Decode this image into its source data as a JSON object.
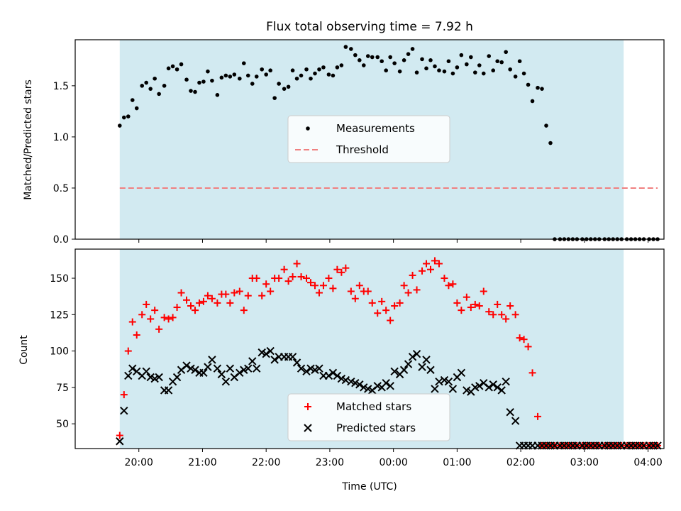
{
  "chart_data": [
    {
      "type": "scatter",
      "title": "Flux total observing time = 7.92 h",
      "ylabel": "Matched/Predicted stars",
      "ylim": [
        0,
        1.95
      ],
      "yticks": [
        0.0,
        0.5,
        1.0,
        1.5
      ],
      "ytick_labels": [
        "0.0",
        "0.5",
        "1.0",
        "1.5"
      ],
      "observing_window": {
        "start": "19:42",
        "end": "03:37",
        "color": "#add8e6"
      },
      "legend": {
        "placement": "center",
        "entries": [
          "Measurements",
          "Threshold"
        ]
      },
      "series": [
        {
          "name": "Measurements",
          "color": "#000000",
          "marker": "dot",
          "x": [
            "19:42",
            "19:46",
            "19:50",
            "19:54",
            "19:58",
            "20:03",
            "20:07",
            "20:11",
            "20:15",
            "20:19",
            "20:24",
            "20:28",
            "20:32",
            "20:36",
            "20:40",
            "20:45",
            "20:49",
            "20:53",
            "20:57",
            "21:01",
            "21:05",
            "21:09",
            "21:14",
            "21:18",
            "21:22",
            "21:26",
            "21:30",
            "21:35",
            "21:39",
            "21:43",
            "21:47",
            "21:51",
            "21:56",
            "22:00",
            "22:04",
            "22:08",
            "22:12",
            "22:17",
            "22:21",
            "22:25",
            "22:29",
            "22:33",
            "22:38",
            "22:42",
            "22:46",
            "22:50",
            "22:54",
            "22:59",
            "23:03",
            "23:07",
            "23:11",
            "23:15",
            "23:20",
            "23:24",
            "23:28",
            "23:32",
            "23:36",
            "23:40",
            "23:45",
            "23:49",
            "23:53",
            "23:57",
            "00:01",
            "00:06",
            "00:10",
            "00:14",
            "00:18",
            "00:22",
            "00:27",
            "00:31",
            "00:35",
            "00:39",
            "00:43",
            "00:48",
            "00:52",
            "00:56",
            "01:00",
            "01:04",
            "01:09",
            "01:13",
            "01:17",
            "01:21",
            "01:25",
            "01:30",
            "01:34",
            "01:38",
            "01:42",
            "01:46",
            "01:50",
            "01:55",
            "01:59",
            "02:03",
            "02:07",
            "02:11",
            "02:16",
            "02:20",
            "02:24",
            "02:28",
            "02:32",
            "02:37",
            "02:41",
            "02:45",
            "02:49",
            "02:53",
            "02:58",
            "03:02",
            "03:06",
            "03:10",
            "03:14",
            "03:19",
            "03:23",
            "03:27",
            "03:31",
            "03:35",
            "03:40",
            "03:44",
            "03:48",
            "03:52",
            "03:56",
            "04:01",
            "04:05",
            "04:09"
          ],
          "y": [
            1.11,
            1.19,
            1.2,
            1.36,
            1.28,
            1.5,
            1.53,
            1.47,
            1.57,
            1.42,
            1.5,
            1.67,
            1.69,
            1.66,
            1.71,
            1.56,
            1.45,
            1.44,
            1.53,
            1.54,
            1.64,
            1.55,
            1.41,
            1.58,
            1.6,
            1.59,
            1.61,
            1.57,
            1.72,
            1.6,
            1.52,
            1.59,
            1.66,
            1.61,
            1.65,
            1.38,
            1.52,
            1.47,
            1.49,
            1.65,
            1.57,
            1.6,
            1.66,
            1.57,
            1.62,
            1.66,
            1.68,
            1.61,
            1.6,
            1.68,
            1.7,
            1.88,
            1.86,
            1.8,
            1.75,
            1.7,
            1.79,
            1.78,
            1.78,
            1.74,
            1.65,
            1.78,
            1.72,
            1.64,
            1.75,
            1.81,
            1.86,
            1.63,
            1.76,
            1.67,
            1.75,
            1.69,
            1.65,
            1.64,
            1.74,
            1.62,
            1.68,
            1.8,
            1.71,
            1.78,
            1.63,
            1.7,
            1.62,
            1.79,
            1.65,
            1.74,
            1.73,
            1.83,
            1.66,
            1.59,
            1.74,
            1.62,
            1.51,
            1.35,
            1.48,
            1.47,
            1.11,
            0.94,
            0.0,
            0.0,
            0.0,
            0.0,
            0.0,
            0.0,
            0.0,
            0.0,
            0.0,
            0.0,
            0.0,
            0.0,
            0.0,
            0.0,
            0.0,
            0.0,
            0.0,
            0.0,
            0.0,
            0.0,
            0.0,
            0.0,
            0.0,
            0.0
          ]
        },
        {
          "name": "Threshold",
          "color": "#f08080",
          "style": "dashed",
          "x": [
            "19:42",
            "04:09"
          ],
          "y": [
            0.5,
            0.5
          ]
        }
      ]
    },
    {
      "type": "scatter",
      "xlabel": "Time (UTC)",
      "ylabel": "Count",
      "ylim": [
        33,
        170
      ],
      "yticks": [
        50,
        75,
        100,
        125,
        150
      ],
      "ytick_labels": [
        "50",
        "75",
        "100",
        "125",
        "150"
      ],
      "x_ticks": [
        "20:00",
        "21:00",
        "22:00",
        "23:00",
        "00:00",
        "01:00",
        "02:00",
        "03:00",
        "04:00"
      ],
      "observing_window": {
        "start": "19:42",
        "end": "03:37",
        "color": "#add8e6"
      },
      "legend": {
        "placement": "bottom-center",
        "entries": [
          "Matched stars",
          "Predicted stars"
        ]
      },
      "series": [
        {
          "name": "Matched stars",
          "color": "#ff0000",
          "marker": "plus",
          "x": [
            "19:42",
            "19:46",
            "19:50",
            "19:54",
            "19:58",
            "20:03",
            "20:07",
            "20:11",
            "20:15",
            "20:19",
            "20:24",
            "20:28",
            "20:32",
            "20:36",
            "20:40",
            "20:45",
            "20:49",
            "20:53",
            "20:57",
            "21:01",
            "21:05",
            "21:09",
            "21:14",
            "21:18",
            "21:22",
            "21:26",
            "21:30",
            "21:35",
            "21:39",
            "21:43",
            "21:47",
            "21:51",
            "21:56",
            "22:00",
            "22:04",
            "22:08",
            "22:12",
            "22:17",
            "22:21",
            "22:25",
            "22:29",
            "22:33",
            "22:38",
            "22:42",
            "22:46",
            "22:50",
            "22:54",
            "22:59",
            "23:03",
            "23:07",
            "23:11",
            "23:15",
            "23:20",
            "23:24",
            "23:28",
            "23:32",
            "23:36",
            "23:40",
            "23:45",
            "23:49",
            "23:53",
            "23:57",
            "00:01",
            "00:06",
            "00:10",
            "00:14",
            "00:18",
            "00:22",
            "00:27",
            "00:31",
            "00:35",
            "00:39",
            "00:43",
            "00:48",
            "00:52",
            "00:56",
            "01:00",
            "01:04",
            "01:09",
            "01:13",
            "01:17",
            "01:21",
            "01:25",
            "01:30",
            "01:34",
            "01:38",
            "01:42",
            "01:46",
            "01:50",
            "01:55",
            "01:59",
            "02:03",
            "02:07",
            "02:11",
            "02:16",
            "02:20",
            "02:24",
            "02:28",
            "02:32",
            "02:37",
            "02:41",
            "02:45",
            "02:49",
            "02:53",
            "02:58",
            "03:02",
            "03:06",
            "03:10",
            "03:14",
            "03:19",
            "03:23",
            "03:27",
            "03:31",
            "03:35",
            "03:40",
            "03:44",
            "03:48",
            "03:52",
            "03:56",
            "04:01",
            "04:05",
            "04:09"
          ],
          "y": [
            42,
            70,
            100,
            120,
            111,
            125,
            132,
            122,
            128,
            115,
            123,
            122,
            123,
            130,
            140,
            135,
            131,
            128,
            133,
            134,
            138,
            136,
            133,
            139,
            139,
            133,
            140,
            141,
            128,
            138,
            150,
            150,
            138,
            146,
            141,
            150,
            150,
            156,
            148,
            151,
            160,
            151,
            150,
            147,
            145,
            140,
            145,
            150,
            143,
            156,
            154,
            157,
            141,
            136,
            145,
            141,
            141,
            133,
            126,
            134,
            128,
            121,
            131,
            133,
            145,
            140,
            152,
            142,
            155,
            160,
            156,
            162,
            160,
            150,
            145,
            146,
            133,
            128,
            137,
            130,
            132,
            131,
            141,
            127,
            125,
            132,
            125,
            122,
            131,
            125,
            109,
            108,
            103,
            85,
            55,
            35,
            35,
            35,
            35,
            35,
            35,
            35,
            35,
            35,
            35,
            35,
            35,
            35,
            35,
            35,
            35,
            35,
            35,
            35,
            35,
            35,
            35,
            35,
            35,
            35,
            35,
            35
          ]
        },
        {
          "name": "Predicted stars",
          "color": "#000000",
          "marker": "x",
          "x": [
            "19:42",
            "19:46",
            "19:50",
            "19:54",
            "19:58",
            "20:03",
            "20:07",
            "20:11",
            "20:15",
            "20:19",
            "20:24",
            "20:28",
            "20:32",
            "20:36",
            "20:40",
            "20:45",
            "20:49",
            "20:53",
            "20:57",
            "21:01",
            "21:05",
            "21:09",
            "21:14",
            "21:18",
            "21:22",
            "21:26",
            "21:30",
            "21:35",
            "21:39",
            "21:43",
            "21:47",
            "21:51",
            "21:56",
            "22:00",
            "22:04",
            "22:08",
            "22:12",
            "22:17",
            "22:21",
            "22:25",
            "22:29",
            "22:33",
            "22:38",
            "22:42",
            "22:46",
            "22:50",
            "22:54",
            "22:59",
            "23:03",
            "23:07",
            "23:11",
            "23:15",
            "23:20",
            "23:24",
            "23:28",
            "23:32",
            "23:36",
            "23:40",
            "23:45",
            "23:49",
            "23:53",
            "23:57",
            "00:01",
            "00:06",
            "00:10",
            "00:14",
            "00:18",
            "00:22",
            "00:27",
            "00:31",
            "00:35",
            "00:39",
            "00:43",
            "00:48",
            "00:52",
            "00:56",
            "01:00",
            "01:04",
            "01:09",
            "01:13",
            "01:17",
            "01:21",
            "01:25",
            "01:30",
            "01:34",
            "01:38",
            "01:42",
            "01:46",
            "01:50",
            "01:55",
            "01:59",
            "02:03",
            "02:07",
            "02:11",
            "02:16",
            "02:20",
            "02:24",
            "02:28",
            "02:32",
            "02:37",
            "02:41",
            "02:45",
            "02:49",
            "02:53",
            "02:58",
            "03:02",
            "03:06",
            "03:10",
            "03:14",
            "03:19",
            "03:23",
            "03:27",
            "03:31",
            "03:35",
            "03:40",
            "03:44",
            "03:48",
            "03:52",
            "03:56",
            "04:01",
            "04:05",
            "04:09"
          ],
          "y": [
            38,
            59,
            83,
            88,
            86,
            83,
            86,
            82,
            81,
            82,
            73,
            73,
            79,
            82,
            87,
            90,
            88,
            87,
            85,
            85,
            89,
            94,
            88,
            84,
            79,
            88,
            82,
            85,
            87,
            88,
            93,
            88,
            99,
            98,
            100,
            94,
            96,
            96,
            96,
            96,
            92,
            88,
            86,
            88,
            87,
            88,
            83,
            83,
            85,
            83,
            81,
            80,
            79,
            78,
            77,
            75,
            74,
            73,
            76,
            75,
            78,
            76,
            86,
            84,
            87,
            91,
            96,
            98,
            89,
            94,
            87,
            74,
            79,
            80,
            79,
            74,
            82,
            85,
            73,
            72,
            75,
            76,
            78,
            75,
            77,
            75,
            73,
            79,
            58,
            52,
            35,
            35,
            35,
            35,
            35,
            35,
            35,
            35,
            35,
            35,
            35,
            35,
            35,
            35,
            35,
            35,
            35,
            35,
            35,
            35,
            35,
            35,
            35,
            35,
            35,
            35,
            35,
            35,
            35,
            35,
            35,
            35
          ]
        }
      ]
    }
  ]
}
